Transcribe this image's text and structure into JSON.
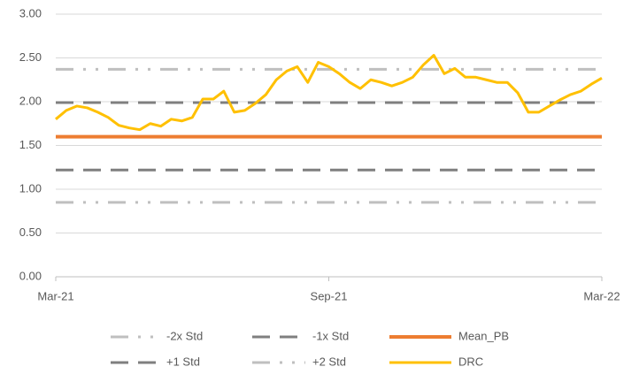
{
  "chart_data": {
    "type": "line",
    "categories": [
      "Mar-21",
      null,
      null,
      null,
      null,
      null,
      null,
      null,
      null,
      null,
      null,
      null,
      null,
      null,
      null,
      null,
      null,
      null,
      null,
      null,
      null,
      null,
      null,
      null,
      null,
      null,
      "Sep-21",
      null,
      null,
      null,
      null,
      null,
      null,
      null,
      null,
      null,
      null,
      null,
      null,
      null,
      null,
      null,
      null,
      null,
      null,
      null,
      null,
      null,
      null,
      null,
      null,
      null,
      "Mar-22"
    ],
    "ylim": [
      0,
      3
    ],
    "yticks": [
      {
        "value": 0,
        "label": "0.00"
      },
      {
        "value": 0.5,
        "label": "0.50"
      },
      {
        "value": 1,
        "label": "1.00"
      },
      {
        "value": 1.5,
        "label": "1.50"
      },
      {
        "value": 2,
        "label": "2.00"
      },
      {
        "value": 2.5,
        "label": "2.50"
      },
      {
        "value": 3,
        "label": "3.00"
      }
    ],
    "grid": true,
    "legend": "bottom",
    "series": [
      {
        "name": "-2x Std",
        "color": "#bfbfbf",
        "dash": "long-dash-dot-dot",
        "width": 3,
        "values": [
          0.85,
          0.85,
          0.85,
          0.85,
          0.85,
          0.85,
          0.85,
          0.85,
          0.85,
          0.85,
          0.85,
          0.85,
          0.85,
          0.85,
          0.85,
          0.85,
          0.85,
          0.85,
          0.85,
          0.85,
          0.85,
          0.85,
          0.85,
          0.85,
          0.85,
          0.85,
          0.85,
          0.85,
          0.85,
          0.85,
          0.85,
          0.85,
          0.85,
          0.85,
          0.85,
          0.85,
          0.85,
          0.85,
          0.85,
          0.85,
          0.85,
          0.85,
          0.85,
          0.85,
          0.85,
          0.85,
          0.85,
          0.85,
          0.85,
          0.85,
          0.85,
          0.85,
          0.85
        ]
      },
      {
        "name": "-1x Std",
        "color": "#7f7f7f",
        "dash": "long-dash",
        "width": 3,
        "values": [
          1.22,
          1.22,
          1.22,
          1.22,
          1.22,
          1.22,
          1.22,
          1.22,
          1.22,
          1.22,
          1.22,
          1.22,
          1.22,
          1.22,
          1.22,
          1.22,
          1.22,
          1.22,
          1.22,
          1.22,
          1.22,
          1.22,
          1.22,
          1.22,
          1.22,
          1.22,
          1.22,
          1.22,
          1.22,
          1.22,
          1.22,
          1.22,
          1.22,
          1.22,
          1.22,
          1.22,
          1.22,
          1.22,
          1.22,
          1.22,
          1.22,
          1.22,
          1.22,
          1.22,
          1.22,
          1.22,
          1.22,
          1.22,
          1.22,
          1.22,
          1.22,
          1.22,
          1.22
        ]
      },
      {
        "name": "Mean_PB",
        "color": "#ed7d31",
        "dash": "solid",
        "width": 4,
        "values": [
          1.6,
          1.6,
          1.6,
          1.6,
          1.6,
          1.6,
          1.6,
          1.6,
          1.6,
          1.6,
          1.6,
          1.6,
          1.6,
          1.6,
          1.6,
          1.6,
          1.6,
          1.6,
          1.6,
          1.6,
          1.6,
          1.6,
          1.6,
          1.6,
          1.6,
          1.6,
          1.6,
          1.6,
          1.6,
          1.6,
          1.6,
          1.6,
          1.6,
          1.6,
          1.6,
          1.6,
          1.6,
          1.6,
          1.6,
          1.6,
          1.6,
          1.6,
          1.6,
          1.6,
          1.6,
          1.6,
          1.6,
          1.6,
          1.6,
          1.6,
          1.6,
          1.6,
          1.6
        ]
      },
      {
        "name": "+1 Std",
        "color": "#7f7f7f",
        "dash": "long-dash",
        "width": 3,
        "values": [
          1.99,
          1.99,
          1.99,
          1.99,
          1.99,
          1.99,
          1.99,
          1.99,
          1.99,
          1.99,
          1.99,
          1.99,
          1.99,
          1.99,
          1.99,
          1.99,
          1.99,
          1.99,
          1.99,
          1.99,
          1.99,
          1.99,
          1.99,
          1.99,
          1.99,
          1.99,
          1.99,
          1.99,
          1.99,
          1.99,
          1.99,
          1.99,
          1.99,
          1.99,
          1.99,
          1.99,
          1.99,
          1.99,
          1.99,
          1.99,
          1.99,
          1.99,
          1.99,
          1.99,
          1.99,
          1.99,
          1.99,
          1.99,
          1.99,
          1.99,
          1.99,
          1.99,
          1.99
        ]
      },
      {
        "name": "+2 Std",
        "color": "#bfbfbf",
        "dash": "long-dash-dot-dot",
        "width": 3,
        "values": [
          2.37,
          2.37,
          2.37,
          2.37,
          2.37,
          2.37,
          2.37,
          2.37,
          2.37,
          2.37,
          2.37,
          2.37,
          2.37,
          2.37,
          2.37,
          2.37,
          2.37,
          2.37,
          2.37,
          2.37,
          2.37,
          2.37,
          2.37,
          2.37,
          2.37,
          2.37,
          2.37,
          2.37,
          2.37,
          2.37,
          2.37,
          2.37,
          2.37,
          2.37,
          2.37,
          2.37,
          2.37,
          2.37,
          2.37,
          2.37,
          2.37,
          2.37,
          2.37,
          2.37,
          2.37,
          2.37,
          2.37,
          2.37,
          2.37,
          2.37,
          2.37,
          2.37,
          2.37
        ]
      },
      {
        "name": "DRC",
        "color": "#ffc000",
        "dash": "solid",
        "width": 3,
        "values": [
          1.8,
          1.9,
          1.95,
          1.93,
          1.88,
          1.82,
          1.73,
          1.7,
          1.68,
          1.75,
          1.72,
          1.8,
          1.78,
          1.82,
          2.03,
          2.03,
          2.12,
          1.88,
          1.9,
          1.98,
          2.08,
          2.25,
          2.35,
          2.4,
          2.22,
          2.45,
          2.4,
          2.32,
          2.22,
          2.15,
          2.25,
          2.22,
          2.18,
          2.22,
          2.28,
          2.42,
          2.53,
          2.32,
          2.38,
          2.28,
          2.28,
          2.25,
          2.22,
          2.22,
          2.1,
          1.88,
          1.88,
          1.95,
          2.02,
          2.08,
          2.12,
          2.2,
          2.27
        ]
      }
    ]
  }
}
